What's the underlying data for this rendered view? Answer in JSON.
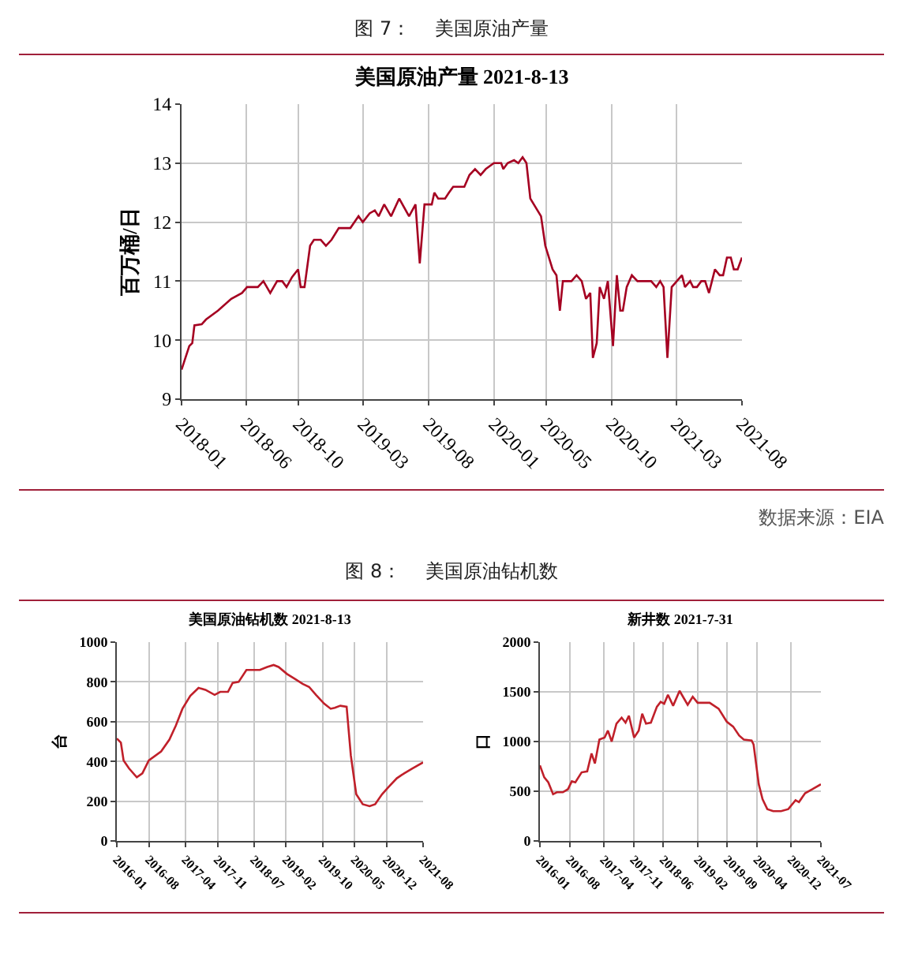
{
  "chart_data": [
    {
      "type": "line",
      "title": "美国原油产量 2021-8-13",
      "ylabel": "百万桶/日",
      "annotations": [
        "图 7：    美国原油产量",
        "数据来源：EIA"
      ],
      "grid": true,
      "xlim": [
        "2018-01",
        "2021-08"
      ],
      "xticks": [
        "2018-01",
        "2018-06",
        "2018-10",
        "2019-03",
        "2019-08",
        "2020-01",
        "2020-05",
        "2020-10",
        "2021-03",
        "2021-08"
      ],
      "ylim": [
        9,
        14
      ],
      "yticks": [
        9,
        10,
        11,
        12,
        13,
        14
      ],
      "series": [
        {
          "color": "#a50021",
          "x": [
            "2018-01-01",
            "2018-01-10",
            "2018-01-19",
            "2018-01-26",
            "2018-01-31",
            "2018-02-17",
            "2018-02-27",
            "2018-03-27",
            "2018-04-27",
            "2018-05-22",
            "2018-06-03",
            "2018-06-28",
            "2018-07-11",
            "2018-07-27",
            "2018-08-12",
            "2018-08-24",
            "2018-09-03",
            "2018-09-16",
            "2018-09-30",
            "2018-10-06",
            "2018-10-15",
            "2018-10-28",
            "2018-11-06",
            "2018-11-22",
            "2018-12-04",
            "2018-12-17",
            "2019-01-03",
            "2019-01-30",
            "2019-02-18",
            "2019-02-28",
            "2019-03-16",
            "2019-03-28",
            "2019-04-06",
            "2019-04-19",
            "2019-05-05",
            "2019-05-24",
            "2019-06-16",
            "2019-07-01",
            "2019-07-11",
            "2019-07-22",
            "2019-07-29",
            "2019-08-08",
            "2019-08-14",
            "2019-08-23",
            "2019-09-08",
            "2019-09-17",
            "2019-09-27",
            "2019-10-23",
            "2019-11-04",
            "2019-11-17",
            "2019-11-30",
            "2019-12-12",
            "2019-12-31",
            "2020-01-17",
            "2020-01-22",
            "2020-02-01",
            "2020-02-16",
            "2020-02-26",
            "2020-03-07",
            "2020-03-16",
            "2020-03-25",
            "2020-04-19",
            "2020-04-29",
            "2020-05-16",
            "2020-05-25",
            "2020-06-02",
            "2020-06-09",
            "2020-06-29",
            "2020-07-11",
            "2020-07-23",
            "2020-08-02",
            "2020-08-12",
            "2020-08-18",
            "2020-08-27",
            "2020-09-03",
            "2020-09-13",
            "2020-09-22",
            "2020-10-04",
            "2020-10-13",
            "2020-10-21",
            "2020-10-27",
            "2020-11-05",
            "2020-11-17",
            "2020-11-30",
            "2021-01-01",
            "2021-01-13",
            "2021-01-22",
            "2021-01-30",
            "2021-02-08",
            "2021-02-18",
            "2021-03-02",
            "2021-03-14",
            "2021-03-21",
            "2021-04-02",
            "2021-04-09",
            "2021-04-18",
            "2021-04-28",
            "2021-05-07",
            "2021-05-16",
            "2021-05-30",
            "2021-06-10",
            "2021-06-18",
            "2021-06-27",
            "2021-07-06",
            "2021-07-13",
            "2021-07-22",
            "2021-08-01"
          ],
          "values": [
            9.5,
            9.7,
            9.9,
            9.95,
            10.25,
            10.27,
            10.35,
            10.5,
            10.7,
            10.8,
            10.9,
            10.9,
            11.0,
            10.8,
            11.0,
            11.0,
            10.9,
            11.07,
            11.2,
            10.9,
            10.9,
            11.6,
            11.7,
            11.7,
            11.6,
            11.7,
            11.9,
            11.9,
            12.1,
            12.0,
            12.15,
            12.2,
            12.1,
            12.3,
            12.1,
            12.4,
            12.1,
            12.3,
            11.3,
            12.3,
            12.3,
            12.3,
            12.5,
            12.4,
            12.4,
            12.5,
            12.6,
            12.6,
            12.8,
            12.9,
            12.8,
            12.9,
            13.0,
            13.0,
            12.9,
            13.0,
            13.05,
            13.0,
            13.1,
            13.0,
            12.4,
            12.1,
            11.6,
            11.2,
            11.1,
            10.5,
            11.0,
            11.0,
            11.1,
            11.0,
            10.7,
            10.8,
            9.7,
            9.95,
            10.9,
            10.7,
            11.0,
            9.9,
            11.1,
            10.5,
            10.5,
            10.9,
            11.1,
            11.0,
            11.0,
            10.9,
            11.0,
            10.9,
            9.7,
            10.9,
            11.0,
            11.1,
            10.9,
            11.0,
            10.9,
            10.9,
            11.0,
            11.0,
            10.8,
            11.2,
            11.1,
            11.1,
            11.4,
            11.4,
            11.2,
            11.2,
            11.4
          ]
        }
      ]
    },
    {
      "type": "line",
      "title": "美国原油钻机数 2021-8-13",
      "ylabel": "台",
      "annotations": [
        "图 8：    美国原油钻机数"
      ],
      "grid": true,
      "xlim": [
        "2016-01",
        "2021-08"
      ],
      "xticks": [
        "2016-01",
        "2016-08",
        "2017-04",
        "2017-11",
        "2018-07",
        "2019-02",
        "2019-10",
        "2020-05",
        "2020-12",
        "2021-08"
      ],
      "ylim": [
        0,
        1000
      ],
      "yticks": [
        0,
        200,
        400,
        600,
        800,
        1000
      ],
      "series": [
        {
          "color": "#c0202a",
          "x": [
            "2016-01-01",
            "2016-01-28",
            "2016-02-15",
            "2016-03-22",
            "2016-05-13",
            "2016-06-19",
            "2016-08-01",
            "2016-10-22",
            "2016-12-16",
            "2017-01-28",
            "2017-03-13",
            "2017-05-04",
            "2017-06-28",
            "2017-08-13",
            "2017-10-13",
            "2017-11-19",
            "2018-01-10",
            "2018-02-10",
            "2018-03-22",
            "2018-05-13",
            "2018-08-10",
            "2018-09-28",
            "2018-11-10",
            "2018-12-13",
            "2019-02-07",
            "2019-04-01",
            "2019-05-22",
            "2019-07-04",
            "2019-08-19",
            "2019-10-13",
            "2019-11-25",
            "2019-12-22",
            "2020-01-28",
            "2020-03-10",
            "2020-04-07",
            "2020-05-13",
            "2020-06-25",
            "2020-08-10",
            "2020-09-16",
            "2020-11-01",
            "2020-12-13",
            "2021-02-07",
            "2021-03-28",
            "2021-05-22",
            "2021-08-01"
          ],
          "values": [
            515,
            495,
            405,
            365,
            320,
            340,
            405,
            450,
            510,
            580,
            665,
            730,
            770,
            760,
            735,
            750,
            750,
            795,
            800,
            860,
            860,
            875,
            885,
            875,
            840,
            815,
            790,
            775,
            735,
            690,
            665,
            670,
            680,
            675,
            430,
            235,
            185,
            175,
            185,
            235,
            270,
            315,
            340,
            365,
            395
          ]
        }
      ]
    },
    {
      "type": "line",
      "title": "新井数 2021-7-31",
      "ylabel": "口",
      "grid": true,
      "xlim": [
        "2016-01",
        "2021-07"
      ],
      "xticks": [
        "2016-01",
        "2016-08",
        "2017-04",
        "2017-11",
        "2018-06",
        "2019-02",
        "2019-09",
        "2020-04",
        "2020-12",
        "2021-07"
      ],
      "ylim": [
        0,
        2000
      ],
      "yticks": [
        0,
        500,
        1000,
        1500,
        2000
      ],
      "series": [
        {
          "color": "#c0202a",
          "x": [
            "2016-01-01",
            "2016-02-01",
            "2016-03-01",
            "2016-04-04",
            "2016-05-01",
            "2016-06-13",
            "2016-07-19",
            "2016-08-16",
            "2016-09-10",
            "2016-10-25",
            "2016-12-04",
            "2017-01-04",
            "2017-01-28",
            "2017-03-01",
            "2017-04-07",
            "2017-05-01",
            "2017-05-28",
            "2017-07-01",
            "2017-08-07",
            "2017-09-04",
            "2017-09-28",
            "2017-11-04",
            "2017-12-07",
            "2018-01-01",
            "2018-01-28",
            "2018-03-04",
            "2018-04-16",
            "2018-05-13",
            "2018-06-07",
            "2018-07-04",
            "2018-08-10",
            "2018-09-25",
            "2018-11-22",
            "2018-12-28",
            "2019-02-01",
            "2019-04-28",
            "2019-07-01",
            "2019-08-28",
            "2019-10-13",
            "2019-11-25",
            "2019-12-28",
            "2020-02-22",
            "2020-03-07",
            "2020-04-13",
            "2020-05-10",
            "2020-06-13",
            "2020-07-25",
            "2020-09-19",
            "2020-11-10",
            "2021-01-01",
            "2021-01-25",
            "2021-03-10",
            "2021-05-01",
            "2021-07-01"
          ],
          "values": [
            760,
            640,
            590,
            470,
            490,
            490,
            520,
            600,
            590,
            690,
            700,
            880,
            780,
            1020,
            1040,
            1110,
            1000,
            1180,
            1240,
            1190,
            1260,
            1040,
            1110,
            1280,
            1180,
            1190,
            1350,
            1400,
            1380,
            1470,
            1360,
            1510,
            1370,
            1450,
            1390,
            1390,
            1330,
            1200,
            1150,
            1060,
            1020,
            1010,
            970,
            570,
            420,
            320,
            300,
            300,
            320,
            410,
            390,
            480,
            520,
            570
          ]
        }
      ]
    }
  ]
}
